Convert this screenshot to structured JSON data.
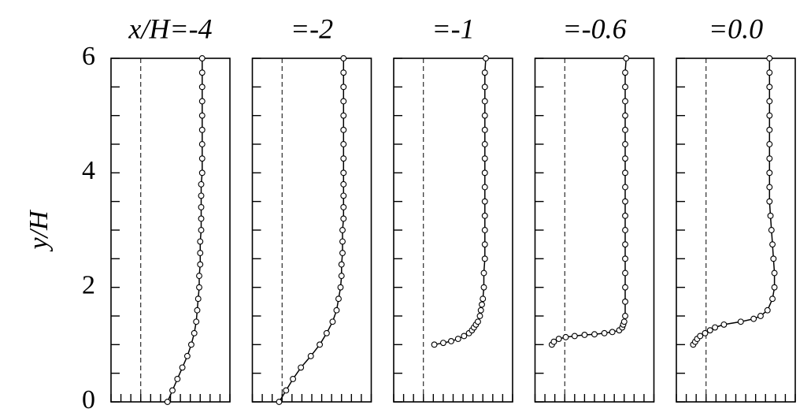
{
  "chart_data": [
    {
      "type": "line",
      "title": "x/H=-4",
      "ylabel": "y/H",
      "color": "#000000",
      "xlim": [
        -0.3,
        0.9
      ],
      "ylim": [
        0,
        6
      ],
      "vline": 0,
      "xticks": [
        -0.3,
        -0.2,
        -0.1,
        0,
        0.1,
        0.2,
        0.3,
        0.4,
        0.5,
        0.6,
        0.7,
        0.8,
        0.9
      ],
      "yticks": [
        0,
        2,
        4,
        6
      ],
      "yminorticks": [
        0,
        0.5,
        1,
        1.5,
        2,
        2.5,
        3,
        3.5,
        4,
        4.5,
        5,
        5.5,
        6
      ],
      "y": [
        0,
        0.2,
        0.4,
        0.6,
        0.8,
        1,
        1.2,
        1.4,
        1.6,
        1.8,
        2,
        2.2,
        2.4,
        2.6,
        2.8,
        3,
        3.2,
        3.4,
        3.6,
        3.8,
        4,
        4.25,
        4.5,
        4.75,
        5,
        5.25,
        5.5,
        5.75,
        6
      ],
      "x": [
        0.27,
        0.32,
        0.37,
        0.42,
        0.47,
        0.51,
        0.54,
        0.56,
        0.57,
        0.58,
        0.59,
        0.59,
        0.6,
        0.6,
        0.6,
        0.61,
        0.61,
        0.61,
        0.61,
        0.61,
        0.62,
        0.62,
        0.62,
        0.62,
        0.62,
        0.62,
        0.62,
        0.62,
        0.62
      ]
    },
    {
      "type": "line",
      "title": "=-2",
      "color": "#000000",
      "xlim": [
        -0.3,
        0.9
      ],
      "ylim": [
        0,
        6
      ],
      "vline": 0,
      "xticks": [
        -0.3,
        -0.2,
        -0.1,
        0,
        0.1,
        0.2,
        0.3,
        0.4,
        0.5,
        0.6,
        0.7,
        0.8,
        0.9
      ],
      "yminorticks": [
        0,
        0.5,
        1,
        1.5,
        2,
        2.5,
        3,
        3.5,
        4,
        4.5,
        5,
        5.5,
        6
      ],
      "y": [
        0,
        0.2,
        0.4,
        0.6,
        0.8,
        1,
        1.2,
        1.4,
        1.6,
        1.8,
        2,
        2.2,
        2.4,
        2.6,
        2.8,
        3,
        3.2,
        3.4,
        3.6,
        3.8,
        4,
        4.25,
        4.5,
        4.75,
        5,
        5.25,
        5.5,
        5.75,
        6
      ],
      "x": [
        -0.03,
        0.04,
        0.11,
        0.19,
        0.29,
        0.38,
        0.45,
        0.51,
        0.55,
        0.57,
        0.59,
        0.6,
        0.6,
        0.61,
        0.61,
        0.61,
        0.62,
        0.62,
        0.62,
        0.62,
        0.62,
        0.62,
        0.62,
        0.62,
        0.62,
        0.62,
        0.62,
        0.62,
        0.62
      ]
    },
    {
      "type": "line",
      "title": "=-1",
      "color": "#000000",
      "xlim": [
        -0.3,
        0.9
      ],
      "ylim": [
        0,
        6
      ],
      "vline": 0,
      "xticks": [
        -0.3,
        -0.2,
        -0.1,
        0,
        0.1,
        0.2,
        0.3,
        0.4,
        0.5,
        0.6,
        0.7,
        0.8,
        0.9
      ],
      "yminorticks": [
        0,
        0.5,
        1,
        1.5,
        2,
        2.5,
        3,
        3.5,
        4,
        4.5,
        5,
        5.5,
        6
      ],
      "y": [
        1,
        1.03,
        1.06,
        1.1,
        1.15,
        1.2,
        1.25,
        1.3,
        1.35,
        1.4,
        1.5,
        1.6,
        1.7,
        1.8,
        2,
        2.25,
        2.5,
        2.75,
        3,
        3.25,
        3.5,
        3.75,
        4,
        4.25,
        4.5,
        4.75,
        5,
        5.25,
        5.5,
        5.75,
        6
      ],
      "x": [
        0.11,
        0.2,
        0.28,
        0.35,
        0.41,
        0.46,
        0.49,
        0.51,
        0.53,
        0.55,
        0.57,
        0.58,
        0.59,
        0.6,
        0.61,
        0.61,
        0.62,
        0.62,
        0.62,
        0.62,
        0.62,
        0.62,
        0.62,
        0.62,
        0.62,
        0.62,
        0.62,
        0.62,
        0.62,
        0.62,
        0.63
      ]
    },
    {
      "type": "line",
      "title": "=-0.6",
      "color": "#000000",
      "xlim": [
        -0.3,
        0.9
      ],
      "ylim": [
        0,
        6
      ],
      "vline": 0,
      "xticks": [
        -0.3,
        -0.2,
        -0.1,
        0,
        0.1,
        0.2,
        0.3,
        0.4,
        0.5,
        0.6,
        0.7,
        0.8,
        0.9
      ],
      "yminorticks": [
        0,
        0.5,
        1,
        1.5,
        2,
        2.5,
        3,
        3.5,
        4,
        4.5,
        5,
        5.5,
        6
      ],
      "y": [
        1,
        1.05,
        1.1,
        1.13,
        1.15,
        1.17,
        1.18,
        1.2,
        1.22,
        1.25,
        1.3,
        1.35,
        1.4,
        1.5,
        1.75,
        2,
        2.25,
        2.5,
        2.75,
        3,
        3.25,
        3.5,
        3.75,
        4,
        4.25,
        4.5,
        4.75,
        5,
        5.25,
        5.5,
        5.75,
        6
      ],
      "x": [
        -0.13,
        -0.11,
        -0.06,
        0.01,
        0.1,
        0.2,
        0.3,
        0.4,
        0.48,
        0.55,
        0.58,
        0.59,
        0.6,
        0.61,
        0.61,
        0.61,
        0.61,
        0.61,
        0.61,
        0.61,
        0.61,
        0.61,
        0.61,
        0.61,
        0.61,
        0.61,
        0.61,
        0.61,
        0.61,
        0.61,
        0.61,
        0.62
      ]
    },
    {
      "type": "line",
      "title": "=0.0",
      "color": "#000000",
      "xlim": [
        -0.3,
        0.9
      ],
      "ylim": [
        0,
        6
      ],
      "vline": 0,
      "xticks": [
        -0.3,
        -0.2,
        -0.1,
        0,
        0.1,
        0.2,
        0.3,
        0.4,
        0.5,
        0.6,
        0.7,
        0.8,
        0.9
      ],
      "yminorticks": [
        0,
        0.5,
        1,
        1.5,
        2,
        2.5,
        3,
        3.5,
        4,
        4.5,
        5,
        5.5,
        6
      ],
      "y": [
        1,
        1.05,
        1.1,
        1.15,
        1.2,
        1.25,
        1.3,
        1.35,
        1.4,
        1.45,
        1.5,
        1.6,
        1.8,
        2,
        2.25,
        2.5,
        2.75,
        3,
        3.25,
        3.5,
        3.75,
        4,
        4.25,
        4.5,
        4.75,
        5,
        5.25,
        5.5,
        5.75,
        6
      ],
      "x": [
        -0.13,
        -0.11,
        -0.09,
        -0.06,
        -0.01,
        0.04,
        0.09,
        0.18,
        0.35,
        0.48,
        0.55,
        0.62,
        0.67,
        0.69,
        0.69,
        0.68,
        0.67,
        0.66,
        0.65,
        0.64,
        0.64,
        0.64,
        0.64,
        0.64,
        0.64,
        0.64,
        0.64,
        0.64,
        0.64,
        0.64
      ]
    }
  ]
}
